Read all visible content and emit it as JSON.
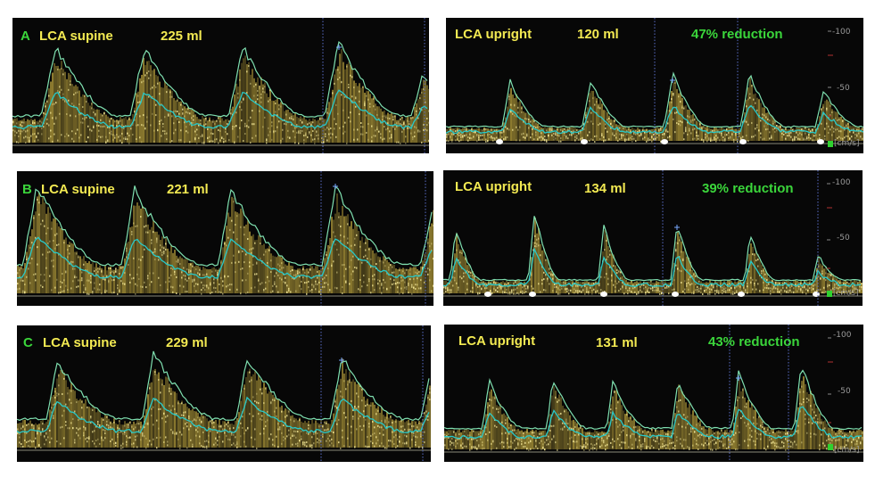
{
  "panels": [
    {
      "letter": "A",
      "left": {
        "title": "LCA supine",
        "volume": "225 ml"
      },
      "right": {
        "title": "LCA upright",
        "volume": "120 ml",
        "reduction": "47% reduction"
      }
    },
    {
      "letter": "B",
      "left": {
        "title": "LCA supine",
        "volume": "221 ml"
      },
      "right": {
        "title": "LCA upright",
        "volume": "134 ml",
        "reduction": "39% reduction"
      }
    },
    {
      "letter": "C",
      "left": {
        "title": "LCA supine",
        "volume": "229 ml"
      },
      "right": {
        "title": "LCA upright",
        "volume": "131 ml",
        "reduction": "43% reduction"
      }
    }
  ],
  "scale": {
    "top": "-100",
    "mid": "-50",
    "unit": "[cm/s]"
  },
  "colors": {
    "background": "#070707",
    "doppler": "#e6c84a",
    "envelope": "#7fe0b0",
    "trace": "#27c9c9",
    "label_yellow": "#f3ea52",
    "label_green": "#3bd63b"
  }
}
